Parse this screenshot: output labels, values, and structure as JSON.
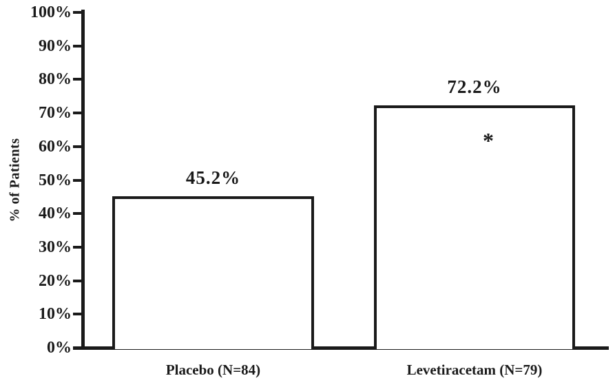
{
  "chart_data": {
    "type": "bar",
    "title": "",
    "ylabel": "% of Patients",
    "xlabel": "",
    "categories": [
      "Placebo (N=84)",
      "Levetiracetam (N=79)"
    ],
    "values": [
      45.2,
      72.2
    ],
    "value_labels": [
      "45.2%",
      "72.2%"
    ],
    "annotations": [
      {
        "text": "*",
        "bar_index": 1
      }
    ],
    "ylim": [
      0,
      100
    ],
    "ytick_step": 10,
    "ytick_labels": [
      "0%",
      "10%",
      "20%",
      "30%",
      "40%",
      "50%",
      "60%",
      "70%",
      "80%",
      "90%",
      "100%"
    ],
    "grid": false,
    "legend_position": "none",
    "colors": {
      "background": "#ffffff",
      "bar_fill": "#ffffff",
      "bar_border": "#1a1a1a",
      "axis": "#1a1a1a",
      "text": "#1a1a1a"
    }
  }
}
